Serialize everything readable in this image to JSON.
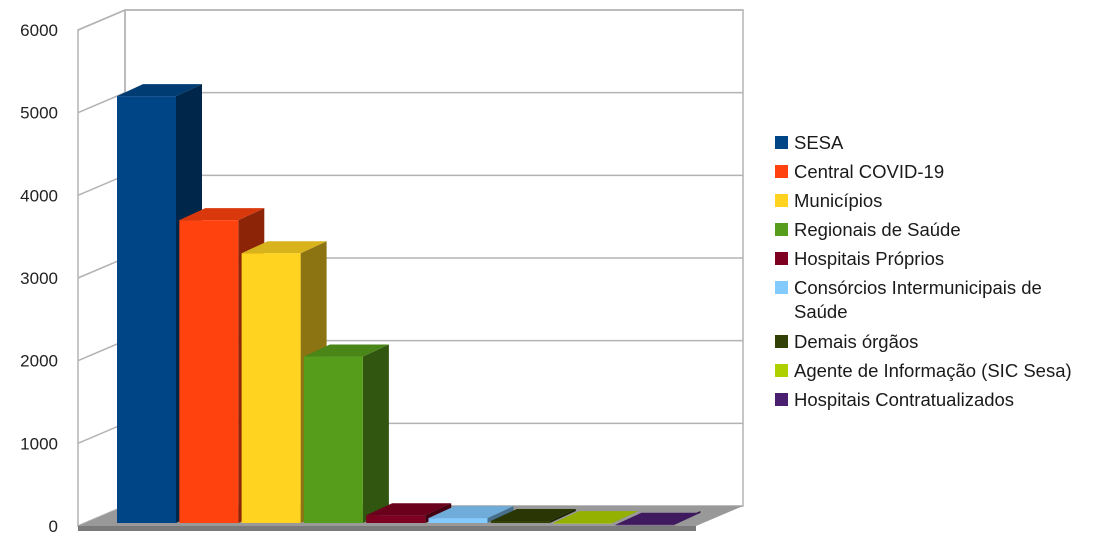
{
  "chart_data": {
    "type": "bar",
    "title": "",
    "xlabel": "",
    "ylabel": "",
    "ylim": [
      0,
      6000
    ],
    "yticks": [
      0,
      1000,
      2000,
      3000,
      4000,
      5000,
      6000
    ],
    "grid": true,
    "legend_position": "right",
    "style": "3d",
    "categories": [
      "SESA",
      "Central COVID-19",
      "Municípios",
      "Regionais de Saúde",
      "Hospitais Próprios",
      "Consórcios Intermunicipais de Saúde",
      "Demais órgãos",
      "Agente de Informação (SIC Sesa)",
      "Hospitais Contratualizados"
    ],
    "values": [
      5200,
      3700,
      3300,
      2050,
      130,
      95,
      60,
      35,
      15
    ],
    "colors": [
      "#004586",
      "#ff420e",
      "#ffd320",
      "#579d1c",
      "#7e0021",
      "#83caff",
      "#314004",
      "#aecf00",
      "#4b1f6f"
    ]
  }
}
